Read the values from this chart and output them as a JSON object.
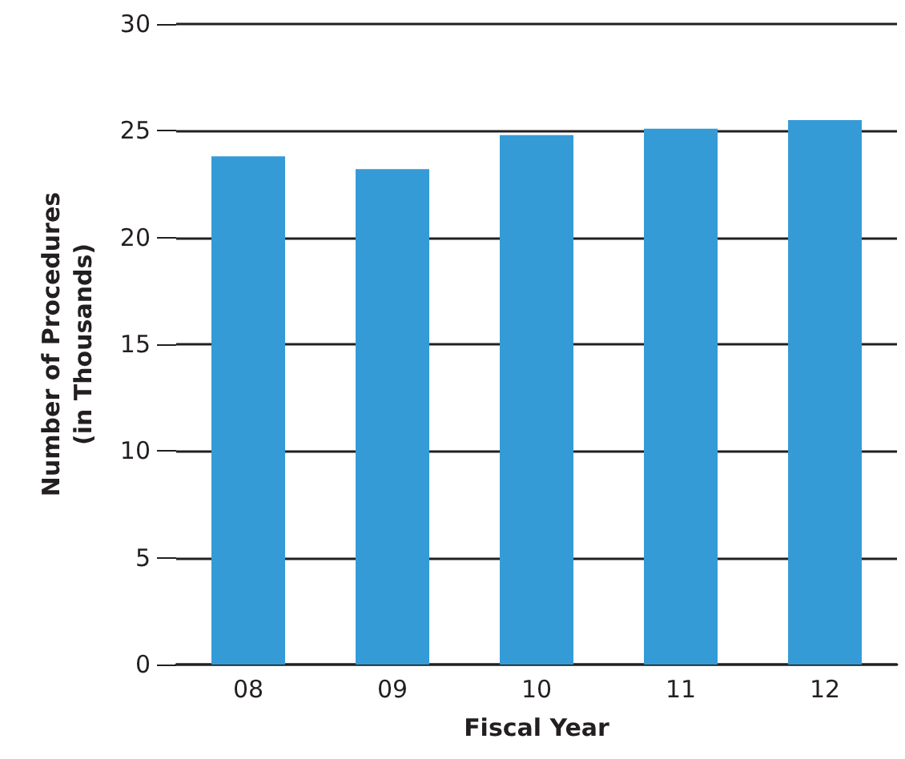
{
  "chart_data": {
    "type": "bar",
    "xlabel": "Fiscal Year",
    "ylabel": "Number of Procedures\n(in Thousands)",
    "categories": [
      "08",
      "09",
      "10",
      "11",
      "12"
    ],
    "values": [
      23.8,
      23.2,
      24.8,
      25.1,
      25.5
    ],
    "color": "#359bd6",
    "ylim": [
      0,
      30
    ],
    "yticks": [
      0,
      5,
      10,
      15,
      20,
      25,
      30
    ],
    "grid": "y"
  }
}
